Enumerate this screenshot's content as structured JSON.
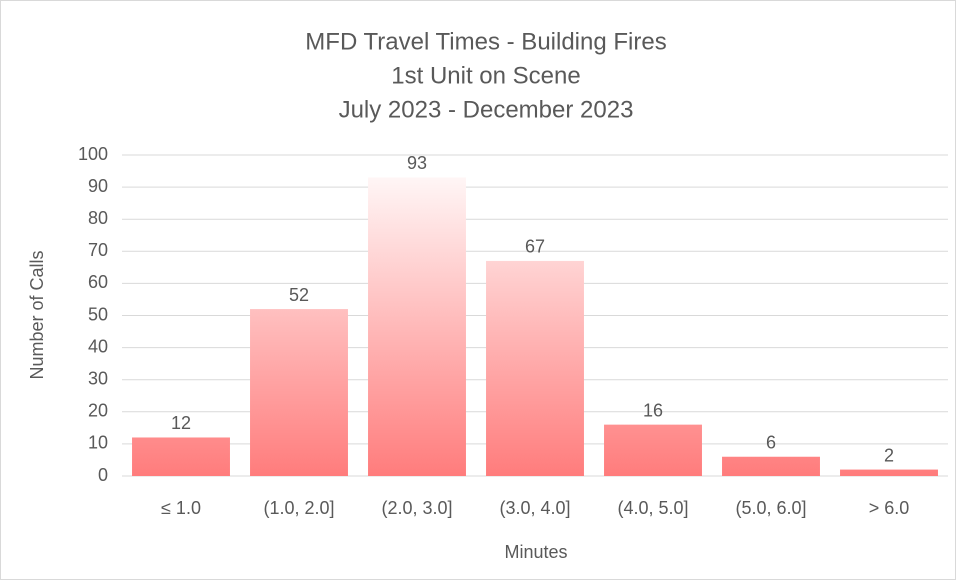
{
  "chart_data": {
    "type": "bar",
    "title": [
      "MFD Travel Times - Building Fires",
      "1st Unit on Scene",
      "July 2023 - December 2023"
    ],
    "xlabel": "Minutes",
    "ylabel": "Number of Calls",
    "categories": [
      "≤ 1.0",
      "(1.0, 2.0]",
      "(2.0, 3.0]",
      "(3.0, 4.0]",
      "(4.0, 5.0]",
      "(5.0, 6.0]",
      "> 6.0"
    ],
    "values": [
      12,
      52,
      93,
      67,
      16,
      6,
      2
    ],
    "color": "#ff7c7c",
    "ylim": [
      0,
      100
    ],
    "yticks": [
      0,
      10,
      20,
      30,
      40,
      50,
      60,
      70,
      80,
      90,
      100
    ],
    "grid": true
  }
}
